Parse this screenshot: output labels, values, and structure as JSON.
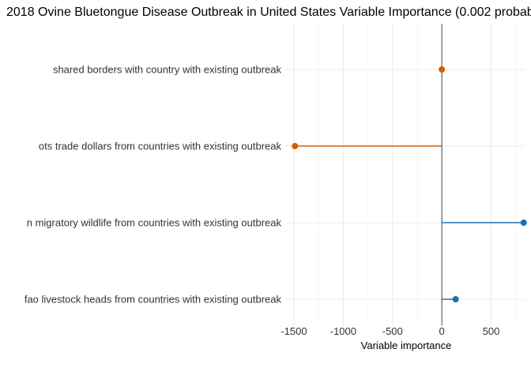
{
  "chart_data": {
    "type": "lollipop",
    "title": "2018 Ovine Bluetongue Disease Outbreak in United States Variable Importance (0.002 probab",
    "xlabel": "Variable importance",
    "ylabel": "",
    "xlim": [
      -1580,
      840
    ],
    "x_ticks": [
      -1500,
      -1000,
      -500,
      0,
      500
    ],
    "x_tick_labels": [
      "-1500",
      "-1000",
      "-500",
      "0",
      "500"
    ],
    "categories": [
      "shared borders with country with existing outbreak",
      "ots trade dollars from countries with existing outbreak",
      "n migratory wildlife from countries with existing outbreak",
      "fao livestock heads from countries with existing outbreak"
    ],
    "values": [
      0,
      -1490,
      830,
      140
    ],
    "colors": {
      "negative": "#d55e00",
      "positive": "#1f6fa8"
    },
    "grid": true,
    "legend": "none"
  }
}
